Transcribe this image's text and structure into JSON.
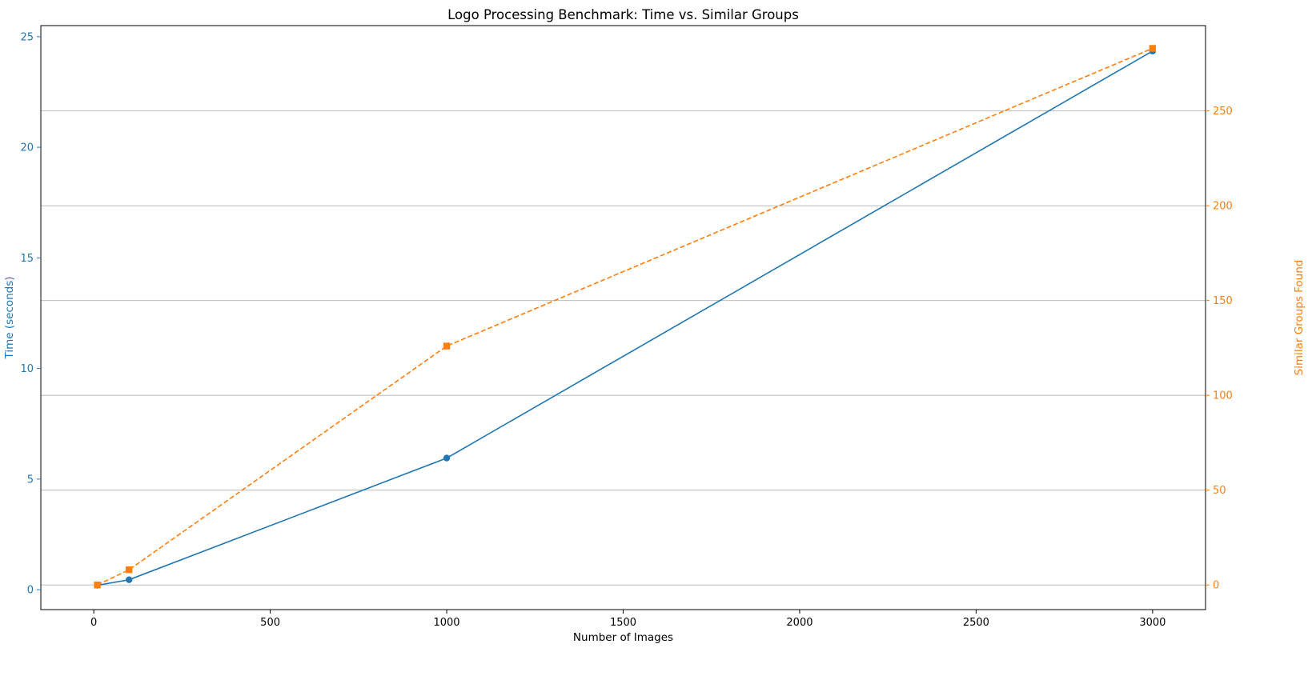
{
  "chart_data": {
    "type": "line",
    "title": "Logo Processing Benchmark: Time vs. Similar Groups",
    "xlabel": "Number of Images",
    "ylabel_left": "Time (seconds)",
    "ylabel_right": "Similar Groups Found",
    "xlim": [
      -150,
      3150
    ],
    "ylim_left": [
      -0.9,
      25.5
    ],
    "ylim_right": [
      -13,
      295
    ],
    "x_ticks": [
      0,
      500,
      1000,
      1500,
      2000,
      2500,
      3000
    ],
    "y_left_ticks": [
      0,
      5,
      10,
      15,
      20,
      25
    ],
    "y_right_ticks": [
      0,
      50,
      100,
      150,
      200,
      250
    ],
    "grid": "horizontal gridlines at right axis ticks",
    "series": [
      {
        "axis": "left",
        "color": "#1f77b4",
        "marker": "circle",
        "line_style": "solid",
        "x": [
          10,
          100,
          1000,
          3000
        ],
        "values": [
          0.2,
          0.45,
          5.95,
          24.35
        ]
      },
      {
        "axis": "right",
        "color": "#ff7f0e",
        "marker": "square",
        "line_style": "dashed",
        "x": [
          10,
          100,
          1000,
          3000
        ],
        "values": [
          0,
          8,
          126,
          283
        ]
      }
    ]
  }
}
